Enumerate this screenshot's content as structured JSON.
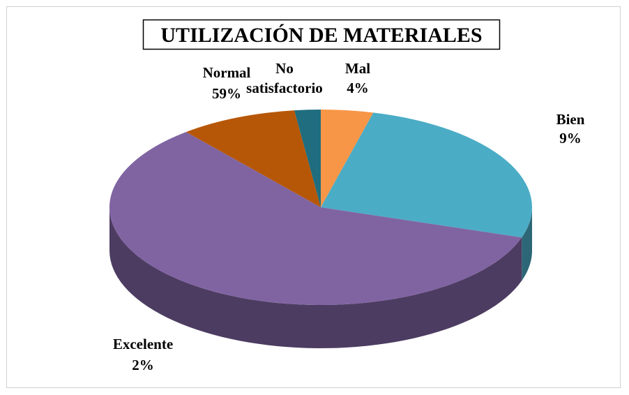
{
  "chart_data": {
    "type": "pie",
    "title": "UTILIZACIÓN DE MATERIALES",
    "categories": [
      "Mal",
      "No satisfactorio",
      "Normal",
      "Bien",
      "Excelente"
    ],
    "values": [
      4,
      26,
      59,
      9,
      2
    ],
    "value_labels": [
      "4%",
      "26%",
      "59%",
      "9%",
      "2%"
    ],
    "colors": [
      "#f79646",
      "#4bacc6",
      "#8064a2",
      "#b65708",
      "#1f6d7e"
    ]
  }
}
